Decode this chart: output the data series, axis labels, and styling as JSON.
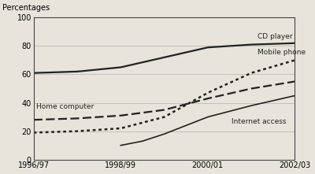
{
  "x_ticks": [
    0,
    2,
    4,
    6
  ],
  "x_tick_labels": [
    "1996/97",
    "1998/99",
    "2000/01",
    "2002/03"
  ],
  "x_range": [
    0,
    6
  ],
  "y_range": [
    0,
    100
  ],
  "y_ticks": [
    0,
    20,
    40,
    60,
    80,
    100
  ],
  "ylabel": "Percentages",
  "background_color": "#e8e4dc",
  "plot_bg": "#e8e4dc",
  "cd_player": {
    "label": "CD player",
    "x": [
      0,
      1,
      2,
      3,
      4,
      5,
      6
    ],
    "y": [
      61,
      62,
      65,
      72,
      79,
      81,
      82
    ],
    "linestyle": "solid",
    "color": "#222222",
    "linewidth": 1.6,
    "ann_x": 5.15,
    "ann_y": 84
  },
  "mobile_phone": {
    "label": "Mobile phone",
    "x": [
      0,
      1,
      2,
      3,
      4,
      5,
      6
    ],
    "y": [
      19,
      20,
      22,
      30,
      47,
      61,
      70
    ],
    "linestyle": "dotted",
    "color": "#222222",
    "linewidth": 1.8,
    "ann_x": 5.15,
    "ann_y": 73
  },
  "home_computer": {
    "label": "Home computer",
    "x": [
      0,
      1,
      2,
      3,
      4,
      5,
      6
    ],
    "y": [
      28,
      29,
      31,
      35,
      43,
      50,
      55
    ],
    "linestyle": "dashed",
    "color": "#222222",
    "linewidth": 1.6,
    "ann_x": 0.05,
    "ann_y": 35
  },
  "internet_access": {
    "label": "Internet access",
    "x": [
      2,
      2.5,
      3,
      4,
      5,
      6
    ],
    "y": [
      10,
      13,
      18,
      30,
      38,
      45
    ],
    "linestyle": "solid",
    "color": "#222222",
    "linewidth": 1.2,
    "ann_x": 4.55,
    "ann_y": 29
  },
  "grid_color": "#bbbbbb",
  "grid_lw": 0.6,
  "tick_fontsize": 7,
  "label_fontsize": 7,
  "ann_fontsize": 6.5
}
